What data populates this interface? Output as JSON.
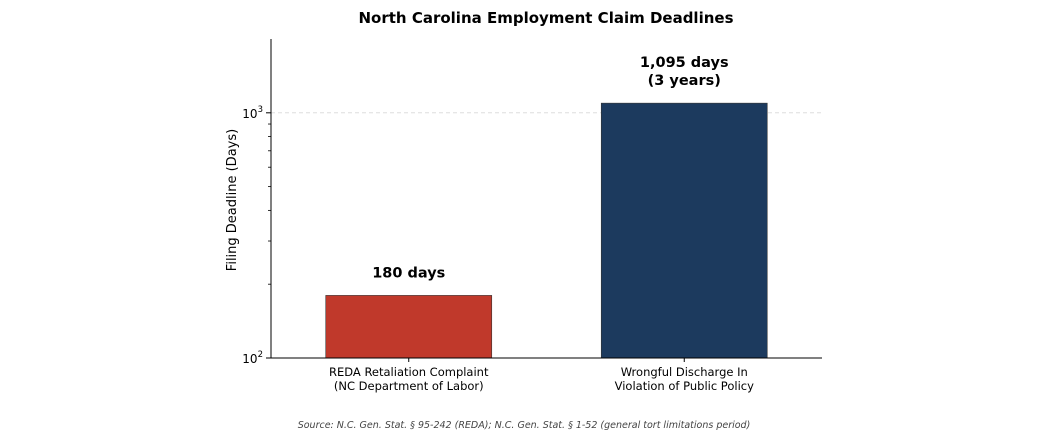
{
  "chart_data": {
    "type": "bar",
    "title": "North Carolina Employment Claim Deadlines",
    "ylabel": "Filing Deadline (Days)",
    "xlabel": "",
    "yscale": "log",
    "ylim": [
      100,
      2000
    ],
    "yticks": [
      {
        "value": 100,
        "base": "10",
        "exp": "2"
      },
      {
        "value": 1000,
        "base": "10",
        "exp": "3"
      }
    ],
    "grid": "dashed horizontal line at 10^3",
    "categories": [
      "REDA Retaliation Complaint\n(NC Department of Labor)",
      "Wrongful Discharge In\nViolation of Public Policy"
    ],
    "values": [
      180,
      1095
    ],
    "colors": [
      "#c0392b",
      "#1c3a5e"
    ],
    "data_labels": [
      [
        "180 days"
      ],
      [
        "1,095 days",
        "(3 years)"
      ]
    ],
    "source": "Source: N.C. Gen. Stat. § 95-242 (REDA); N.C. Gen. Stat. § 1-52 (general tort limitations period)"
  }
}
